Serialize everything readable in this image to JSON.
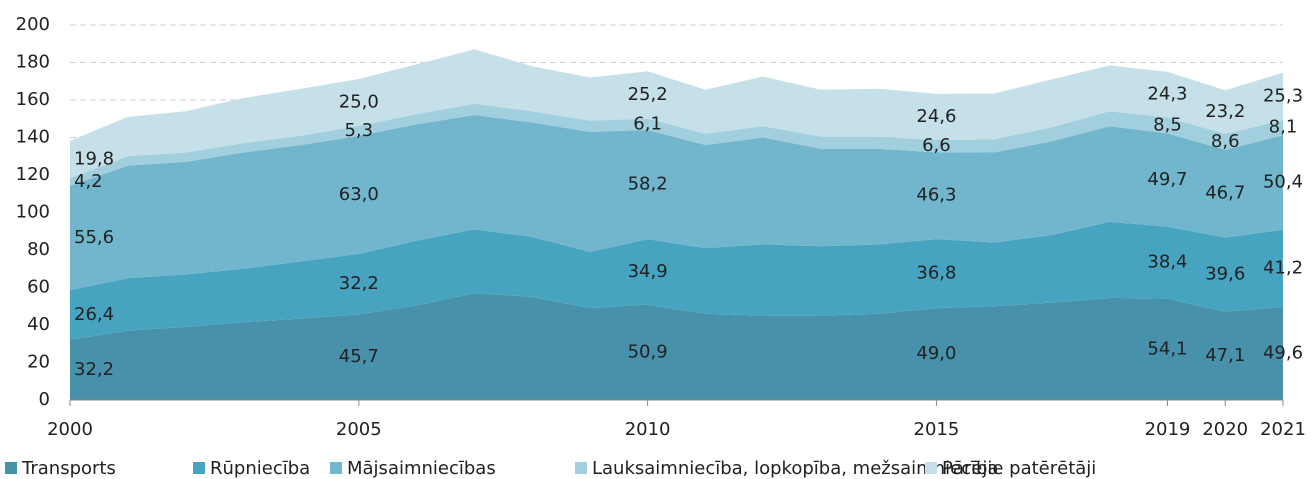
{
  "chart_data": {
    "type": "area",
    "stacked": true,
    "x": [
      2000,
      2001,
      2002,
      2003,
      2004,
      2005,
      2006,
      2007,
      2008,
      2009,
      2010,
      2011,
      2012,
      2013,
      2014,
      2015,
      2016,
      2017,
      2018,
      2019,
      2020,
      2021
    ],
    "xlim": [
      2000,
      2021
    ],
    "xticks": [
      2000,
      2005,
      2010,
      2015,
      2019,
      2020,
      2021
    ],
    "ylim": [
      0,
      200
    ],
    "yticks": [
      0,
      20,
      40,
      60,
      80,
      100,
      120,
      140,
      160,
      180,
      200
    ],
    "grid": true,
    "legend": "bottom",
    "series": [
      {
        "name": "Transports",
        "color": "#4891aa",
        "values": [
          32.2,
          37,
          39,
          41.5,
          43.5,
          45.7,
          50.5,
          57,
          55,
          49,
          50.9,
          46,
          45,
          45,
          46,
          49.0,
          50,
          52,
          54.5,
          54.1,
          47.1,
          49.6
        ],
        "value_labels": [
          "32,2",
          null,
          null,
          null,
          null,
          "45,7",
          null,
          null,
          null,
          null,
          "50,9",
          null,
          null,
          null,
          null,
          "49,0",
          null,
          null,
          null,
          "54,1",
          "47,1",
          "49,6"
        ]
      },
      {
        "name": "Rūpniecība",
        "color": "#46a4c0",
        "values": [
          26.4,
          28,
          28,
          28.5,
          30.5,
          32.2,
          34.5,
          34,
          32,
          30,
          34.9,
          35,
          38,
          37,
          37,
          36.8,
          34,
          36,
          40.5,
          38.4,
          39.6,
          41.2
        ],
        "value_labels": [
          "26,4",
          null,
          null,
          null,
          null,
          "32,2",
          null,
          null,
          null,
          null,
          "34,9",
          null,
          null,
          null,
          null,
          "36,8",
          null,
          null,
          null,
          "38,4",
          "39,6",
          "41,2"
        ]
      },
      {
        "name": "Mājsaimniecības",
        "color": "#71b6cd",
        "values": [
          55.6,
          60,
          60,
          62,
          62,
          63.0,
          62,
          61,
          61,
          64,
          58.2,
          55,
          57,
          52,
          51,
          46.3,
          48,
          50,
          51,
          49.7,
          46.7,
          50.4
        ],
        "value_labels": [
          "55,6",
          null,
          null,
          null,
          null,
          "63,0",
          null,
          null,
          null,
          null,
          "58,2",
          null,
          null,
          null,
          null,
          "46,3",
          null,
          null,
          null,
          "49,7",
          "46,7",
          "50,4"
        ]
      },
      {
        "name": "Lauksaimniecība, lopkopība, mežsaimniecība",
        "color": "#a2cfdd",
        "values": [
          4.2,
          5,
          5,
          5,
          5,
          5.3,
          5.5,
          6,
          6,
          6,
          6.1,
          6,
          6,
          6.5,
          6.5,
          6.6,
          7,
          7.5,
          8,
          8.5,
          8.6,
          8.1
        ],
        "value_labels": [
          "4,2",
          null,
          null,
          null,
          null,
          "5,3",
          null,
          null,
          null,
          null,
          "6,1",
          null,
          null,
          null,
          null,
          "6,6",
          null,
          null,
          null,
          "8,5",
          "8,6",
          "8,1"
        ]
      },
      {
        "name": "Pārējie patērētāji",
        "color": "#c5e0e8",
        "values": [
          19.8,
          21,
          22,
          24,
          25,
          25.0,
          26.5,
          29,
          24,
          23,
          25.2,
          23.5,
          26.5,
          25,
          25.5,
          24.6,
          24.5,
          25.5,
          24.5,
          24.3,
          23.2,
          25.3
        ],
        "value_labels": [
          "19,8",
          null,
          null,
          null,
          null,
          "25,0",
          null,
          null,
          null,
          null,
          "25,2",
          null,
          null,
          null,
          null,
          "24,6",
          null,
          null,
          null,
          "24,3",
          "23,2",
          "25,3"
        ]
      }
    ]
  }
}
